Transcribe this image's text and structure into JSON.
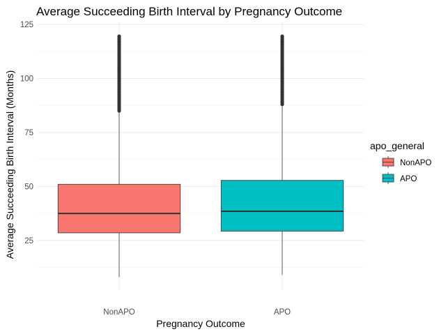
{
  "chart_data": {
    "type": "boxplot",
    "title": "Average Succeeding Birth Interval by Pregnancy Outcome",
    "xlabel": "Pregnancy Outcome",
    "ylabel": "Average Succeeding Birth Interval (Months)",
    "ylim": [
      2,
      126
    ],
    "yticks": [
      25,
      50,
      75,
      100,
      125
    ],
    "grid": true,
    "legend": {
      "title": "apo_general",
      "placement": "right",
      "entries": [
        "NonAPO",
        "APO"
      ]
    },
    "categories": [
      "NonAPO",
      "APO"
    ],
    "series": [
      {
        "name": "NonAPO",
        "color": "#F8766D",
        "whisker_low": 8,
        "q1": 28.5,
        "median": 37.5,
        "q3": 51,
        "whisker_high": 85,
        "outliers": {
          "from": 85,
          "to": 120
        }
      },
      {
        "name": "APO",
        "color": "#00BFC4",
        "whisker_low": 9,
        "q1": 29.3,
        "median": 38.5,
        "q3": 52.8,
        "whisker_high": 88,
        "outliers": {
          "from": 88,
          "to": 120
        }
      }
    ]
  }
}
